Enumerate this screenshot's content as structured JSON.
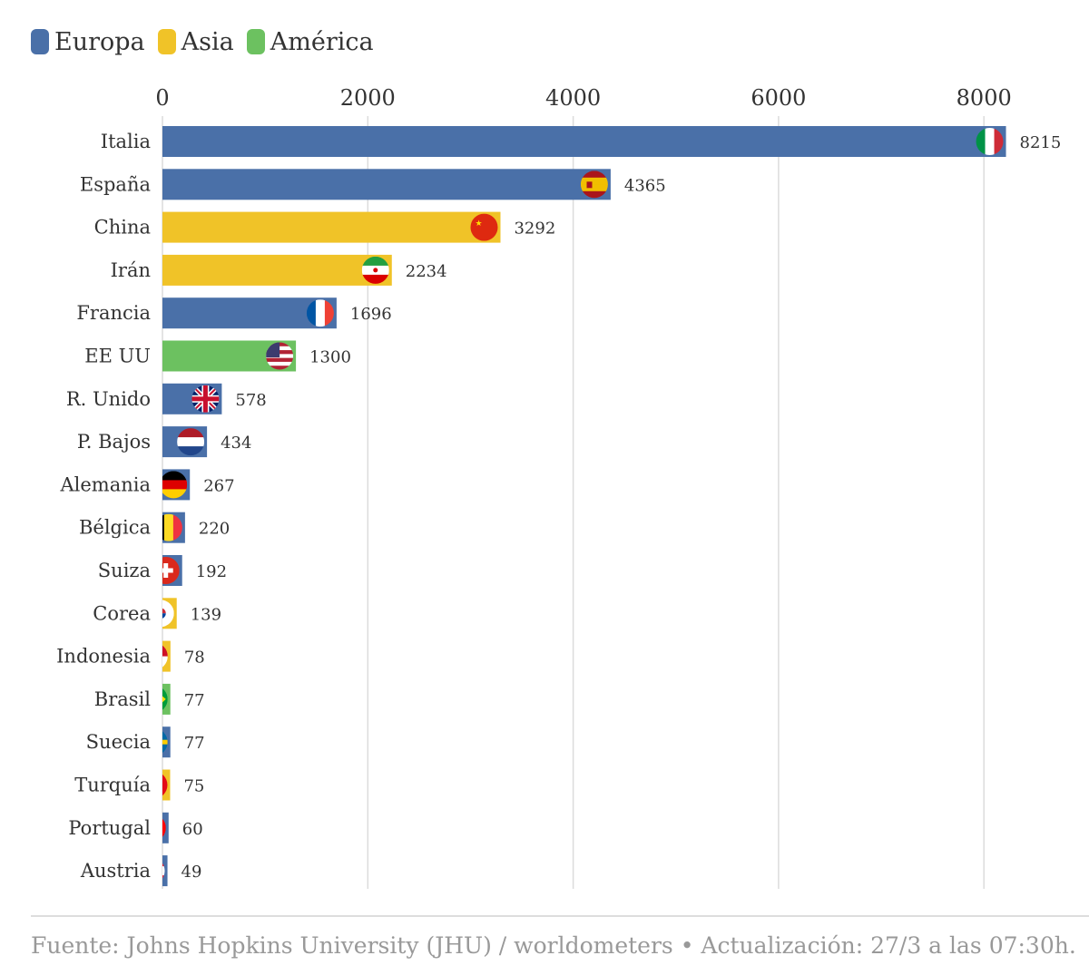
{
  "legend": [
    {
      "label": "Europa",
      "color": "#4a70a8"
    },
    {
      "label": "Asia",
      "color": "#f0c328"
    },
    {
      "label": "América",
      "color": "#6cc160"
    }
  ],
  "source": "Fuente: Johns Hopkins University (JHU) / worldometers • Actualización: 27/3 a las 07:30h.",
  "chart_data": {
    "type": "bar",
    "orientation": "horizontal",
    "title": "",
    "xlabel": "",
    "ylabel": "",
    "xlim": [
      0,
      8400
    ],
    "ticks": [
      0,
      2000,
      4000,
      6000,
      8000
    ],
    "tick_labels": [
      "0",
      "2000",
      "4000",
      "6000",
      "8000"
    ],
    "grid": true,
    "legend_position": "top-left",
    "categories": [
      "Italia",
      "España",
      "China",
      "Irán",
      "Francia",
      "EE UU",
      "R. Unido",
      "P. Bajos",
      "Alemania",
      "Bélgica",
      "Suiza",
      "Corea",
      "Indonesia",
      "Brasil",
      "Suecia",
      "Turquía",
      "Portugal",
      "Austria"
    ],
    "values": [
      8215,
      4365,
      3292,
      2234,
      1696,
      1300,
      578,
      434,
      267,
      220,
      192,
      139,
      78,
      77,
      77,
      75,
      60,
      49
    ],
    "value_labels": [
      "8215",
      "4365",
      "3292",
      "2234",
      "1696",
      "1300",
      "578",
      "434",
      "267",
      "220",
      "192",
      "139",
      "78",
      "77",
      "77",
      "75",
      "60",
      "49"
    ],
    "regions": [
      "Europa",
      "Europa",
      "Asia",
      "Asia",
      "Europa",
      "América",
      "Europa",
      "Europa",
      "Europa",
      "Europa",
      "Europa",
      "Asia",
      "Asia",
      "América",
      "Europa",
      "Asia",
      "Europa",
      "Europa"
    ],
    "flag_icons": [
      "italy-flag-icon",
      "spain-flag-icon",
      "china-flag-icon",
      "iran-flag-icon",
      "france-flag-icon",
      "usa-flag-icon",
      "uk-flag-icon",
      "netherlands-flag-icon",
      "germany-flag-icon",
      "belgium-flag-icon",
      "switzerland-flag-icon",
      "korea-flag-icon",
      "indonesia-flag-icon",
      "brazil-flag-icon",
      "sweden-flag-icon",
      "turkey-flag-icon",
      "portugal-flag-icon",
      "austria-flag-icon"
    ]
  }
}
